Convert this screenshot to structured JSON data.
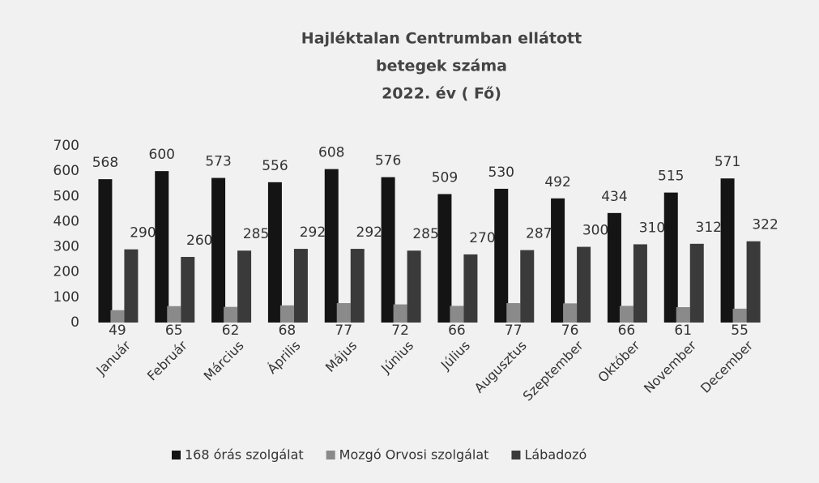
{
  "chart_data": {
    "type": "bar",
    "title": [
      "Hajléktalan Centrumban ellátott",
      "betegek száma",
      "2022. év ( Fő)"
    ],
    "categories": [
      "Január",
      "Február",
      "Március",
      "Április",
      "Május",
      "Június",
      "Július",
      "Augusztus",
      "Szeptember",
      "Október",
      "November",
      "December"
    ],
    "series": [
      {
        "name": "168 órás szolgálat",
        "color": "#141414",
        "values": [
          568,
          600,
          573,
          556,
          608,
          576,
          509,
          530,
          492,
          434,
          515,
          571
        ]
      },
      {
        "name": "Mozgó Orvosi szolgálat",
        "color": "#8a8a8a",
        "values": [
          49,
          65,
          62,
          68,
          77,
          72,
          66,
          77,
          76,
          66,
          61,
          55
        ]
      },
      {
        "name": "Lábadozó",
        "color": "#3a3a3a",
        "values": [
          290,
          260,
          285,
          292,
          292,
          285,
          270,
          287,
          300,
          310,
          312,
          322
        ]
      }
    ],
    "ylim": [
      0,
      700
    ],
    "yticks": [
      0,
      100,
      200,
      300,
      400,
      500,
      600,
      700
    ],
    "grid": false,
    "legend": "bottom"
  }
}
